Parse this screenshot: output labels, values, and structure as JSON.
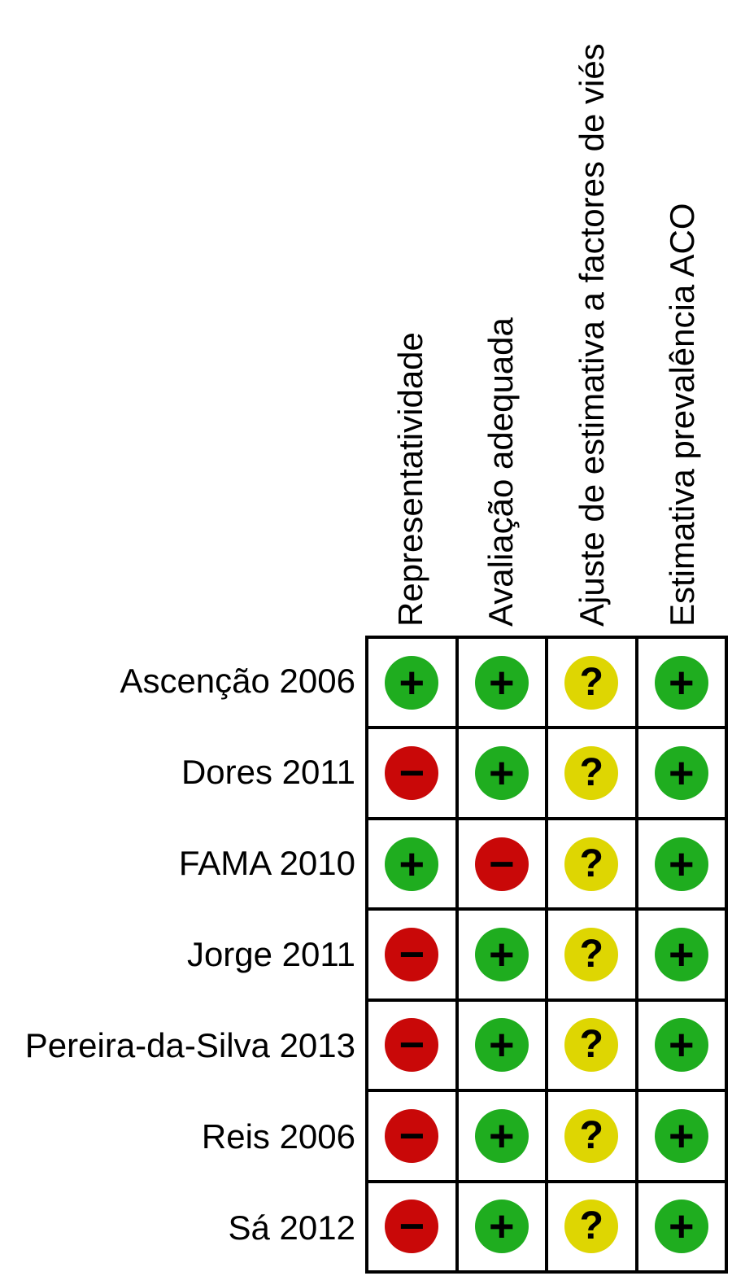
{
  "chart_data": {
    "type": "table",
    "title": "",
    "columns": [
      "Representatividade",
      "Avaliação adequada",
      "Ajuste de estimativa a factores de viés",
      "Estimativa prevalência ACO"
    ],
    "rows": [
      {
        "label": "Ascenção 2006",
        "judgements": [
          "plus",
          "plus",
          "question",
          "plus"
        ]
      },
      {
        "label": "Dores 2011",
        "judgements": [
          "minus",
          "plus",
          "question",
          "plus"
        ]
      },
      {
        "label": "FAMA 2010",
        "judgements": [
          "plus",
          "minus",
          "question",
          "plus"
        ]
      },
      {
        "label": "Jorge 2011",
        "judgements": [
          "minus",
          "plus",
          "question",
          "plus"
        ]
      },
      {
        "label": "Pereira-da-Silva 2013",
        "judgements": [
          "minus",
          "plus",
          "question",
          "plus"
        ]
      },
      {
        "label": "Reis 2006",
        "judgements": [
          "minus",
          "plus",
          "question",
          "plus"
        ]
      },
      {
        "label": "Sá 2012",
        "judgements": [
          "minus",
          "plus",
          "question",
          "plus"
        ]
      }
    ],
    "symbols": {
      "plus": "+",
      "minus": "−",
      "question": "?"
    },
    "colors": {
      "plus": "#1FAD1F",
      "minus": "#C90808",
      "question": "#DED602",
      "symbol": "#000000",
      "grid": "#000000",
      "background": "#FFFFFF"
    },
    "layout_hints": {
      "header_rotation_deg": -90,
      "grid_on": true,
      "legend_position": "none"
    }
  }
}
